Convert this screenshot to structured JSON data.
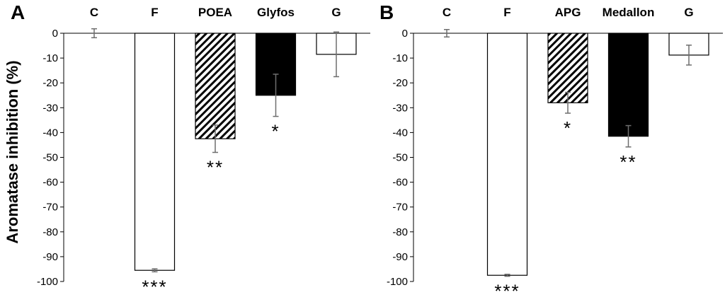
{
  "y_axis_title": "Aromatase  inhibition (%)",
  "chart_data": [
    {
      "type": "bar",
      "panel_label": "A",
      "categories": [
        "C",
        "F",
        "POEA",
        "Glyfos",
        "G"
      ],
      "values": [
        0,
        -95.5,
        -42.5,
        -25,
        -8.5
      ],
      "errors": [
        1.8,
        0.6,
        5.5,
        8.5,
        9
      ],
      "significance": [
        "",
        "***",
        "**",
        "*",
        ""
      ],
      "fills": [
        "white",
        "white",
        "hatched",
        "black",
        "white"
      ],
      "yticks": [
        "0",
        "-10",
        "-20",
        "-30",
        "-40",
        "-50",
        "-60",
        "-70",
        "-80",
        "-90",
        "-100"
      ],
      "ylim": [
        -100,
        0
      ],
      "ylabel": "Aromatase  inhibition (%)",
      "grid": false,
      "categories_position": "top"
    },
    {
      "type": "bar",
      "panel_label": "B",
      "categories": [
        "C",
        "F",
        "APG",
        "Medallon",
        "G"
      ],
      "values": [
        0,
        -97.5,
        -28,
        -41.5,
        -8.8
      ],
      "errors": [
        1.5,
        0.4,
        4.2,
        4.3,
        4
      ],
      "significance": [
        "",
        "***",
        "*",
        "**",
        ""
      ],
      "fills": [
        "white",
        "white",
        "hatched",
        "black",
        "white"
      ],
      "yticks": [
        "0",
        "-10",
        "-20",
        "-30",
        "-40",
        "-50",
        "-60",
        "-70",
        "-80",
        "-90",
        "-100"
      ],
      "ylim": [
        -100,
        0
      ],
      "ylabel": "",
      "grid": false,
      "categories_position": "top"
    }
  ]
}
